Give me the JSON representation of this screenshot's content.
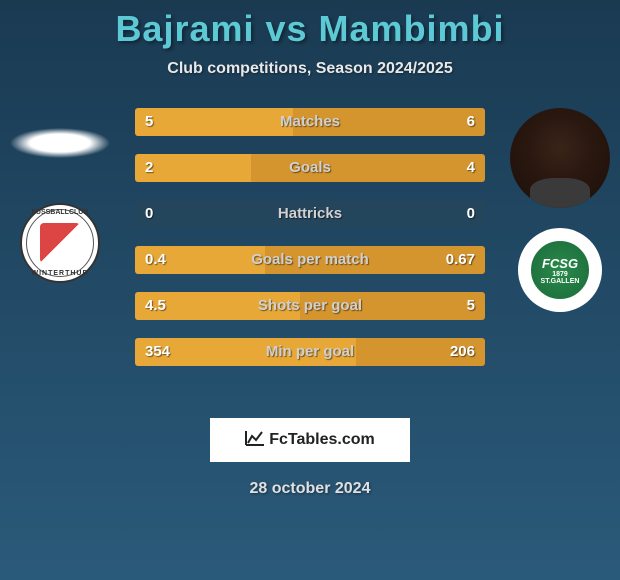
{
  "header": {
    "title": "Bajrami vs Mambimbi",
    "subtitle": "Club competitions, Season 2024/2025",
    "title_color": "#5cc9d4"
  },
  "player_left": {
    "name": "Bajrami",
    "club_top": "FUSSBALLCLUB",
    "club_bottom": "WINTERTHUR"
  },
  "player_right": {
    "name": "Mambimbi",
    "club_text1": "FCSG",
    "club_text2": "1879",
    "club_text3": "ST.GALLEN"
  },
  "stats": [
    {
      "label": "Matches",
      "left_val": "5",
      "right_val": "6",
      "left_pct": 45,
      "right_pct": 55
    },
    {
      "label": "Goals",
      "left_val": "2",
      "right_val": "4",
      "left_pct": 33,
      "right_pct": 67
    },
    {
      "label": "Hattricks",
      "left_val": "0",
      "right_val": "0",
      "left_pct": 0,
      "right_pct": 0
    },
    {
      "label": "Goals per match",
      "left_val": "0.4",
      "right_val": "0.67",
      "left_pct": 37,
      "right_pct": 63
    },
    {
      "label": "Shots per goal",
      "left_val": "4.5",
      "right_val": "5",
      "left_pct": 47,
      "right_pct": 53
    },
    {
      "label": "Min per goal",
      "left_val": "354",
      "right_val": "206",
      "left_pct": 63,
      "right_pct": 37
    }
  ],
  "bar_colors": {
    "left": "#e8a838",
    "right": "#d4942e",
    "bg": "rgba(40,70,90,0.6)"
  },
  "footer": {
    "watermark": "FcTables.com",
    "date": "28 october 2024"
  }
}
